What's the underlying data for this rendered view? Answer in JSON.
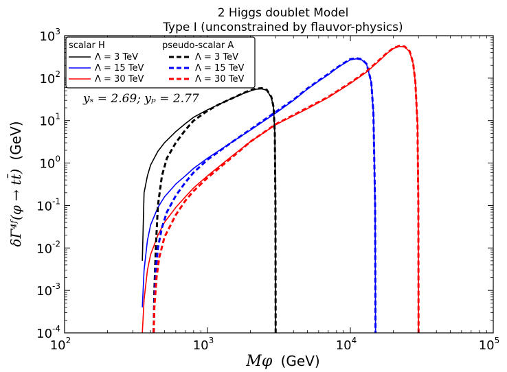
{
  "chart_data": {
    "type": "line",
    "title": "2 Higgs doublet Model",
    "subtitle": "Type I (unconstrained by flauvor-physics)",
    "xlabel_math": "Mφ",
    "xlabel_unit": "(GeV)",
    "ylabel_math": "δΓ⁴ᶠ(φ → tt̄)",
    "ylabel_unit": "(GeV)",
    "xscale": "log",
    "yscale": "log",
    "xlim": [
      100,
      100000
    ],
    "ylim": [
      0.0001,
      1000
    ],
    "xticks": [
      {
        "value": 100,
        "base": "10",
        "exp": "2"
      },
      {
        "value": 1000,
        "base": "10",
        "exp": "3"
      },
      {
        "value": 10000,
        "base": "10",
        "exp": "4"
      },
      {
        "value": 100000,
        "base": "10",
        "exp": "5"
      }
    ],
    "yticks": [
      {
        "value": 0.0001,
        "base": "10",
        "exp": "-4"
      },
      {
        "value": 0.001,
        "base": "10",
        "exp": "-3"
      },
      {
        "value": 0.01,
        "base": "10",
        "exp": "-2"
      },
      {
        "value": 0.1,
        "base": "10",
        "exp": "-1"
      },
      {
        "value": 1,
        "base": "10",
        "exp": "0"
      },
      {
        "value": 10,
        "base": "10",
        "exp": "1"
      },
      {
        "value": 100,
        "base": "10",
        "exp": "2"
      },
      {
        "value": 1000,
        "base": "10",
        "exp": "3"
      }
    ],
    "legend_placement": "top-left",
    "legend": {
      "scalar_header": "scalar H",
      "pseudo_header": "pseudo-scalar A"
    },
    "annotation": "yₛ = 2.69; yₚ = 2.77",
    "series": [
      {
        "name": "Λ = 3 TeV",
        "group": "scalar H",
        "color": "#000000",
        "dashed": false,
        "points": [
          [
            350,
            0.005
          ],
          [
            360,
            0.2
          ],
          [
            380,
            0.5
          ],
          [
            400,
            0.9
          ],
          [
            450,
            1.9
          ],
          [
            500,
            3.0
          ],
          [
            600,
            5.5
          ],
          [
            700,
            8.5
          ],
          [
            800,
            12
          ],
          [
            1000,
            18
          ],
          [
            1200,
            24
          ],
          [
            1500,
            34
          ],
          [
            1800,
            44
          ],
          [
            2000,
            50
          ],
          [
            2200,
            55
          ],
          [
            2400,
            56
          ],
          [
            2600,
            52
          ],
          [
            2800,
            35
          ],
          [
            2900,
            20
          ],
          [
            2960,
            5
          ],
          [
            2990,
            0.1
          ],
          [
            3000,
            0.0001
          ]
        ]
      },
      {
        "name": "Λ = 15 TeV",
        "group": "scalar H",
        "color": "#0000ff",
        "dashed": false,
        "points": [
          [
            350,
            0.0004
          ],
          [
            360,
            0.003
          ],
          [
            380,
            0.015
          ],
          [
            400,
            0.035
          ],
          [
            450,
            0.09
          ],
          [
            500,
            0.16
          ],
          [
            600,
            0.32
          ],
          [
            700,
            0.5
          ],
          [
            800,
            0.75
          ],
          [
            1000,
            1.3
          ],
          [
            1500,
            3.2
          ],
          [
            2000,
            6
          ],
          [
            3000,
            15
          ],
          [
            4000,
            30
          ],
          [
            5000,
            55
          ],
          [
            6000,
            85
          ],
          [
            7000,
            120
          ],
          [
            8000,
            170
          ],
          [
            9000,
            220
          ],
          [
            10000,
            270
          ],
          [
            11000,
            285
          ],
          [
            12000,
            270
          ],
          [
            13000,
            210
          ],
          [
            14000,
            80
          ],
          [
            14500,
            15
          ],
          [
            14900,
            0.1
          ],
          [
            15000,
            0.0001
          ]
        ]
      },
      {
        "name": "Λ = 30 TeV",
        "group": "scalar H",
        "color": "#ff0000",
        "dashed": false,
        "points": [
          [
            350,
            0.0001
          ],
          [
            360,
            0.0006
          ],
          [
            380,
            0.003
          ],
          [
            400,
            0.007
          ],
          [
            450,
            0.02
          ],
          [
            500,
            0.04
          ],
          [
            600,
            0.09
          ],
          [
            700,
            0.16
          ],
          [
            800,
            0.26
          ],
          [
            1000,
            0.5
          ],
          [
            1500,
            1.5
          ],
          [
            2000,
            3.2
          ],
          [
            3000,
            8
          ],
          [
            4000,
            13
          ],
          [
            5000,
            19
          ],
          [
            7000,
            35
          ],
          [
            10000,
            75
          ],
          [
            13000,
            140
          ],
          [
            16000,
            260
          ],
          [
            18000,
            380
          ],
          [
            20000,
            500
          ],
          [
            22000,
            560
          ],
          [
            24000,
            540
          ],
          [
            26000,
            420
          ],
          [
            27500,
            220
          ],
          [
            28500,
            80
          ],
          [
            29500,
            8
          ],
          [
            29900,
            0.1
          ],
          [
            30000,
            0.0001
          ]
        ]
      },
      {
        "name": "Λ = 3 TeV",
        "group": "pseudo-scalar A",
        "color": "#000000",
        "dashed": true,
        "points": [
          [
            420,
            0.0001
          ],
          [
            425,
            0.001
          ],
          [
            435,
            0.01
          ],
          [
            450,
            0.1
          ],
          [
            480,
            0.5
          ],
          [
            520,
            1.3
          ],
          [
            600,
            3.0
          ],
          [
            700,
            6
          ],
          [
            800,
            10
          ],
          [
            1000,
            17
          ],
          [
            1200,
            24
          ],
          [
            1500,
            34
          ],
          [
            1800,
            45
          ],
          [
            2000,
            52
          ],
          [
            2200,
            57
          ],
          [
            2400,
            58
          ],
          [
            2600,
            53
          ],
          [
            2800,
            36
          ],
          [
            2900,
            21
          ],
          [
            2960,
            5
          ],
          [
            2990,
            0.1
          ],
          [
            3000,
            0.0001
          ]
        ]
      },
      {
        "name": "Λ = 15 TeV",
        "group": "pseudo-scalar A",
        "color": "#0000ff",
        "dashed": true,
        "points": [
          [
            420,
            0.0001
          ],
          [
            425,
            0.0005
          ],
          [
            435,
            0.003
          ],
          [
            450,
            0.01
          ],
          [
            480,
            0.03
          ],
          [
            520,
            0.07
          ],
          [
            600,
            0.17
          ],
          [
            700,
            0.35
          ],
          [
            800,
            0.6
          ],
          [
            1000,
            1.2
          ],
          [
            1500,
            3.2
          ],
          [
            2000,
            6.2
          ],
          [
            3000,
            16
          ],
          [
            4000,
            31
          ],
          [
            5000,
            57
          ],
          [
            6000,
            88
          ],
          [
            7000,
            125
          ],
          [
            8000,
            175
          ],
          [
            9000,
            225
          ],
          [
            10000,
            280
          ],
          [
            11000,
            295
          ],
          [
            12000,
            280
          ],
          [
            13000,
            215
          ],
          [
            14000,
            82
          ],
          [
            14500,
            15
          ],
          [
            14900,
            0.1
          ],
          [
            15000,
            0.0001
          ]
        ]
      },
      {
        "name": "Λ = 30 TeV",
        "group": "pseudo-scalar A",
        "color": "#ff0000",
        "dashed": true,
        "points": [
          [
            420,
            0.0001
          ],
          [
            425,
            0.0004
          ],
          [
            440,
            0.002
          ],
          [
            460,
            0.006
          ],
          [
            500,
            0.018
          ],
          [
            600,
            0.06
          ],
          [
            700,
            0.13
          ],
          [
            800,
            0.22
          ],
          [
            1000,
            0.45
          ],
          [
            1500,
            1.4
          ],
          [
            2000,
            3.2
          ],
          [
            3000,
            8.2
          ],
          [
            4000,
            13.5
          ],
          [
            5000,
            20
          ],
          [
            7000,
            36
          ],
          [
            10000,
            78
          ],
          [
            13000,
            145
          ],
          [
            16000,
            270
          ],
          [
            18000,
            390
          ],
          [
            20000,
            510
          ],
          [
            22000,
            575
          ],
          [
            24000,
            555
          ],
          [
            26000,
            430
          ],
          [
            27500,
            225
          ],
          [
            28500,
            82
          ],
          [
            29500,
            8
          ],
          [
            29900,
            0.1
          ],
          [
            30000,
            0.0001
          ]
        ]
      }
    ]
  }
}
